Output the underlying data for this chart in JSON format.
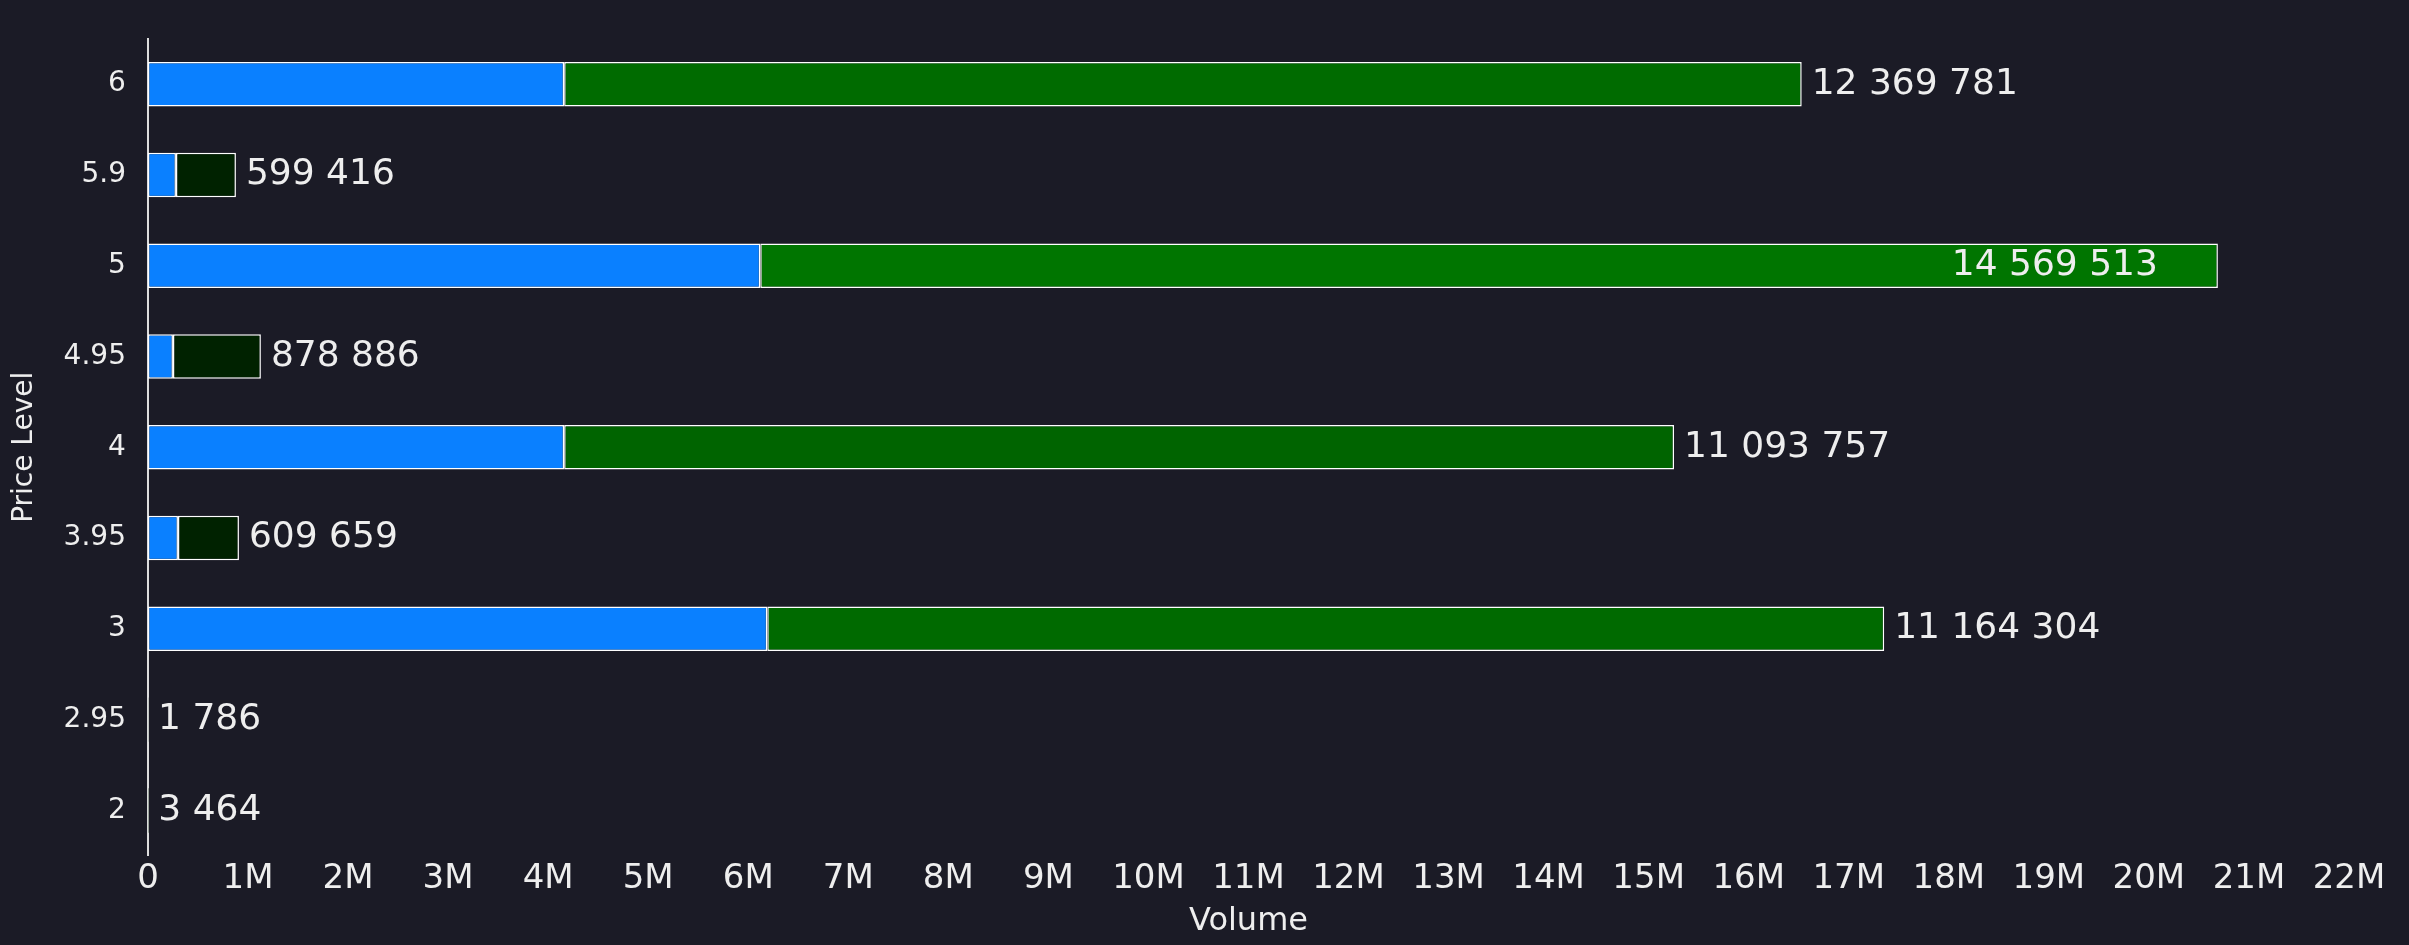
{
  "chart_data": {
    "type": "bar",
    "orientation": "horizontal",
    "stacked": true,
    "xlabel": "Volume",
    "ylabel": "Price Level",
    "categories": [
      "6",
      "5.9",
      "5",
      "4.95",
      "4",
      "3.95",
      "3",
      "2.95",
      "2"
    ],
    "series": [
      {
        "color": "#0a80ff",
        "values": [
          4160000,
          280000,
          6120000,
          250000,
          4160000,
          300000,
          6190000,
          0,
          0
        ]
      },
      {
        "colors": [
          "#006b00",
          "#002200",
          "#007500",
          "#002200",
          "#006400",
          "#002200",
          "#006a00",
          "#002200",
          "#002200"
        ],
        "values": [
          12369781,
          599416,
          14569513,
          878886,
          11093757,
          609659,
          11164304,
          1786,
          3464
        ],
        "value_labels": [
          "12 369 781",
          "599 416",
          "14 569 513",
          "878 886",
          "11 093 757",
          "609 659",
          "11 164 304",
          "1 786",
          "3 464"
        ]
      }
    ],
    "xlim": [
      0,
      22000000
    ],
    "xticks": [
      0,
      {
        "value": 1000000,
        "label": "1M"
      },
      {
        "value": 2000000,
        "label": "2M"
      },
      {
        "value": 3000000,
        "label": "3M"
      },
      {
        "value": 4000000,
        "label": "4M"
      },
      {
        "value": 5000000,
        "label": "5M"
      },
      {
        "value": 6000000,
        "label": "6M"
      },
      {
        "value": 7000000,
        "label": "7M"
      },
      {
        "value": 8000000,
        "label": "8M"
      },
      {
        "value": 9000000,
        "label": "9M"
      },
      {
        "value": 10000000,
        "label": "10M"
      },
      {
        "value": 11000000,
        "label": "11M"
      },
      {
        "value": 12000000,
        "label": "12M"
      },
      {
        "value": 13000000,
        "label": "13M"
      },
      {
        "value": 14000000,
        "label": "14M"
      },
      {
        "value": 15000000,
        "label": "15M"
      },
      {
        "value": 16000000,
        "label": "16M"
      },
      {
        "value": 17000000,
        "label": "17M"
      },
      {
        "value": 18000000,
        "label": "18M"
      },
      {
        "value": 19000000,
        "label": "19M"
      },
      {
        "value": 20000000,
        "label": "20M"
      },
      {
        "value": 21000000,
        "label": "21M"
      },
      {
        "value": 22000000,
        "label": "22M"
      }
    ],
    "grid": false,
    "legend": false
  }
}
